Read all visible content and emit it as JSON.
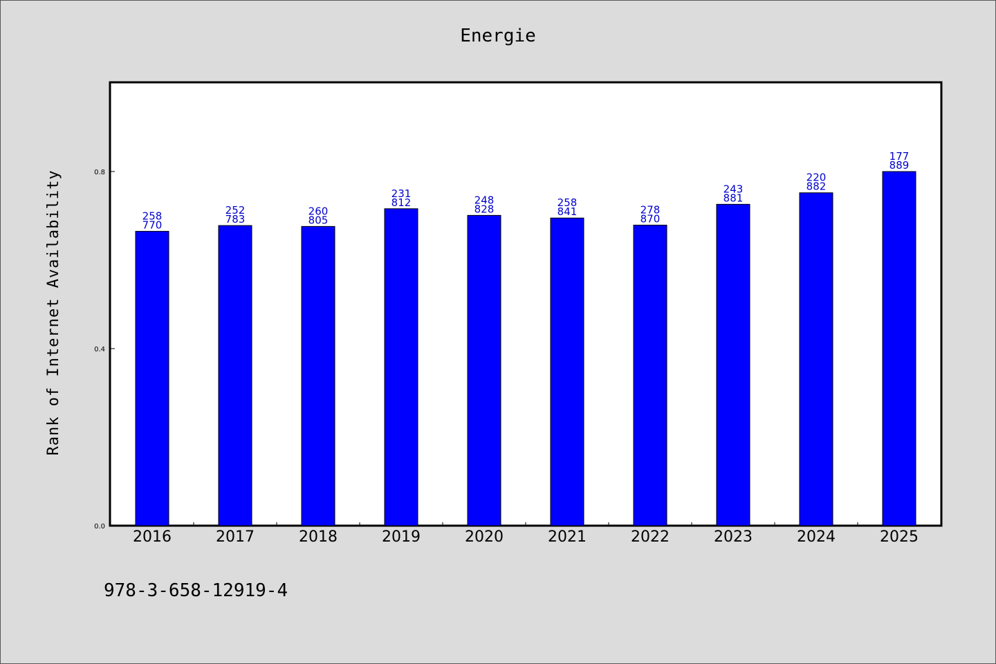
{
  "chart_data": {
    "type": "bar",
    "title": "Energie",
    "ylabel": "Rank of Internet Availability",
    "xlabel": "",
    "categories": [
      "2016",
      "2017",
      "2018",
      "2019",
      "2020",
      "2021",
      "2022",
      "2023",
      "2024",
      "2025"
    ],
    "values": [
      0.665,
      0.678,
      0.676,
      0.716,
      0.701,
      0.695,
      0.679,
      0.726,
      0.752,
      0.8
    ],
    "data_labels": [
      [
        "258",
        "770"
      ],
      [
        "252",
        "783"
      ],
      [
        "260",
        "805"
      ],
      [
        "231",
        "812"
      ],
      [
        "248",
        "828"
      ],
      [
        "258",
        "841"
      ],
      [
        "278",
        "870"
      ],
      [
        "243",
        "881"
      ],
      [
        "220",
        "882"
      ],
      [
        "177",
        "889"
      ]
    ],
    "yticks": [
      "0.0",
      "0.4",
      "0.8"
    ],
    "ytick_values": [
      0.0,
      0.4,
      0.8
    ],
    "ylim": [
      0,
      1.0
    ],
    "bar_color": "#0000ff",
    "label_color": "#0000cc",
    "grid": false,
    "legend": "none"
  },
  "footer": {
    "isbn": "978-3-658-12919-4"
  }
}
